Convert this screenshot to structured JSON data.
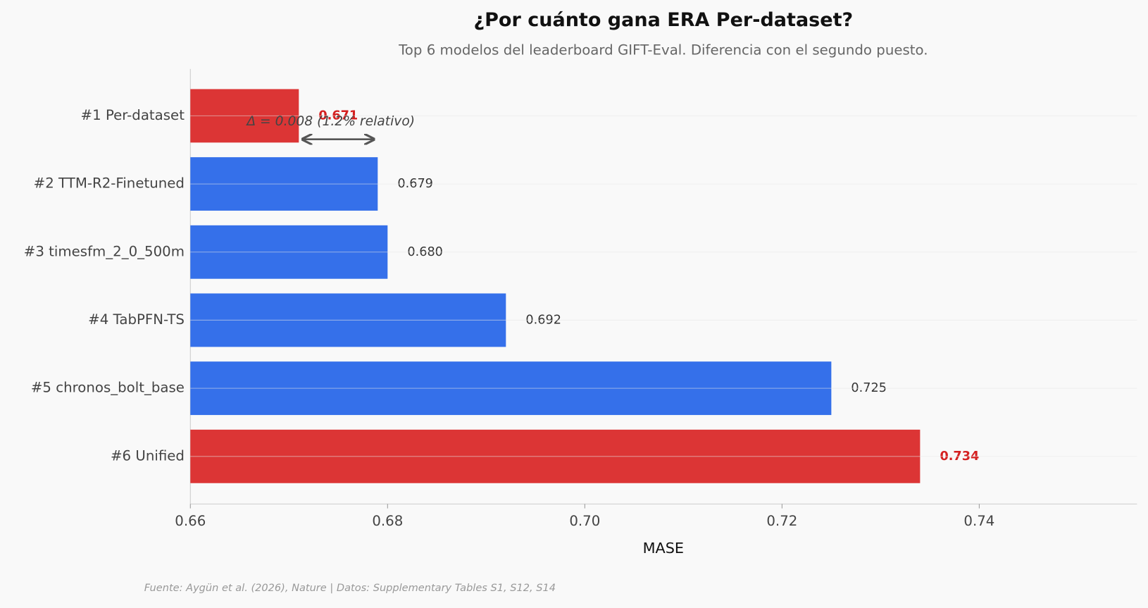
{
  "chart_data": {
    "type": "barh",
    "title": "¿Por cuánto gana ERA Per-dataset?",
    "subtitle": "Top 6 modelos del leaderboard GIFT-Eval. Diferencia con el segundo puesto.",
    "x_label": "MASE",
    "categories": [
      "#1  Per-dataset",
      "#2  TTM-R2-Finetuned",
      "#3  timesfm_2_0_500m",
      "#4  TabPFN-TS",
      "#5  chronos_bolt_base",
      "#6  Unified"
    ],
    "values": [
      0.671,
      0.679,
      0.68,
      0.692,
      0.725,
      0.734
    ],
    "value_labels": [
      "0.671",
      "0.679",
      "0.680",
      "0.692",
      "0.725",
      "0.734"
    ],
    "colors": [
      "#dc3535",
      "#3570ea",
      "#3570ea",
      "#3570ea",
      "#3570ea",
      "#dc3535"
    ],
    "highlight_color": "#dc3535",
    "highlight_label_color": "#d42020",
    "xlim": [
      0.66,
      0.756
    ],
    "xticks": [
      0.66,
      0.68,
      {
        "value": 0.7,
        "label": "0.70"
      },
      0.72,
      0.74
    ],
    "grid": true,
    "annotation": "Δ = 0.008  (1.2% relativo)",
    "source": "Fuente: Aygün et al. (2026), Nature | Datos: Supplementary Tables S1, S12, S14"
  }
}
